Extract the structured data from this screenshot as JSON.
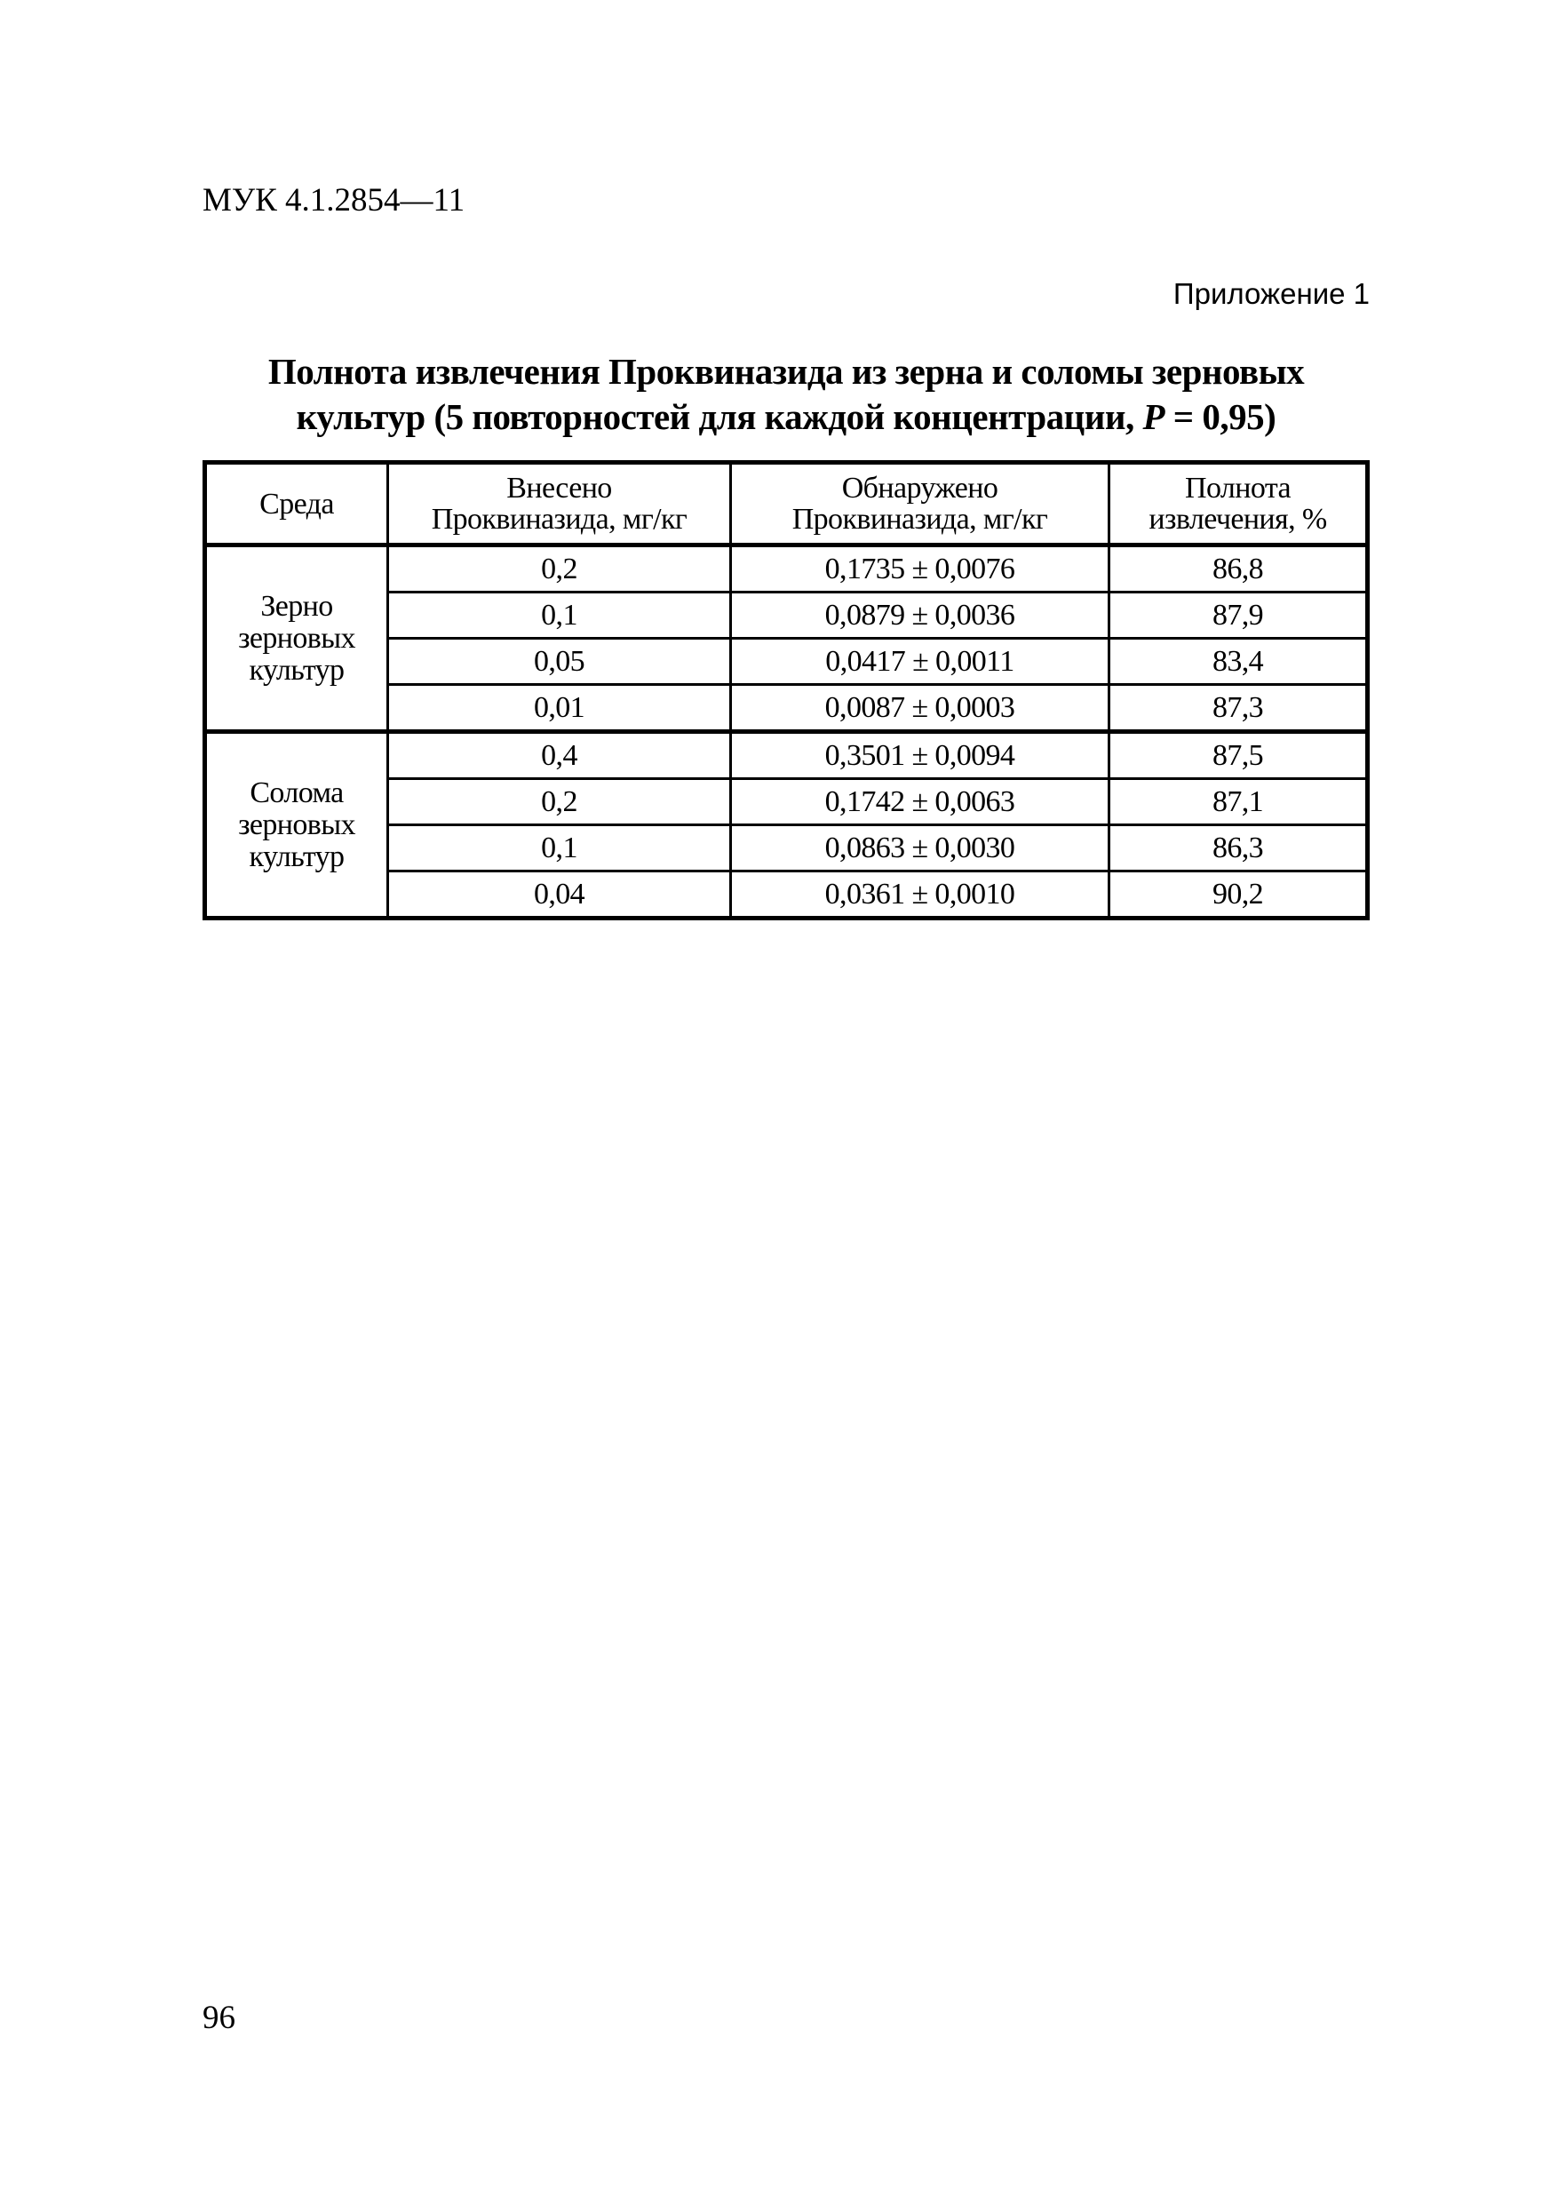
{
  "header": {
    "doc_code": "МУК 4.1.2854—11",
    "appendix": "Приложение 1"
  },
  "title": {
    "line1": "Полнота извлечения Проквиназида из зерна и соломы зерновых",
    "line2_prefix": "культур (5 повторностей для каждой концентрации, ",
    "line2_var": "P",
    "line2_suffix": " = 0,95)"
  },
  "table": {
    "columns": [
      {
        "line1": "Среда",
        "line2": ""
      },
      {
        "line1": "Внесено",
        "line2": "Проквиназида, мг/кг"
      },
      {
        "line1": "Обнаружено",
        "line2": "Проквиназида, мг/кг"
      },
      {
        "line1": "Полнота",
        "line2": "извлечения, %"
      }
    ],
    "groups": [
      {
        "medium": [
          "Зерно",
          "зерновых",
          "культур"
        ],
        "rows": [
          {
            "added": "0,2",
            "found": "0,1735 ± 0,0076",
            "recovery": "86,8"
          },
          {
            "added": "0,1",
            "found": "0,0879 ± 0,0036",
            "recovery": "87,9"
          },
          {
            "added": "0,05",
            "found": "0,0417 ± 0,0011",
            "recovery": "83,4"
          },
          {
            "added": "0,01",
            "found": "0,0087 ± 0,0003",
            "recovery": "87,3"
          }
        ]
      },
      {
        "medium": [
          "Солома",
          "зерновых",
          "культур"
        ],
        "rows": [
          {
            "added": "0,4",
            "found": "0,3501 ± 0,0094",
            "recovery": "87,5"
          },
          {
            "added": "0,2",
            "found": "0,1742 ± 0,0063",
            "recovery": "87,1"
          },
          {
            "added": "0,1",
            "found": "0,0863 ± 0,0030",
            "recovery": "86,3"
          },
          {
            "added": "0,04",
            "found": "0,0361 ± 0,0010",
            "recovery": "90,2"
          }
        ]
      }
    ]
  },
  "footer": {
    "page_number": "96"
  }
}
